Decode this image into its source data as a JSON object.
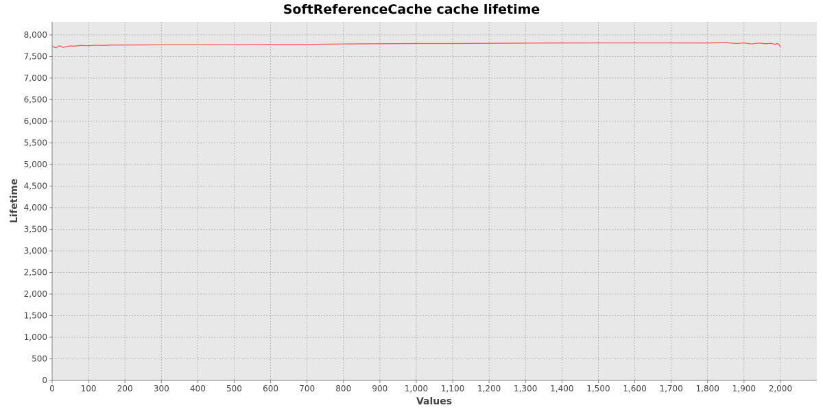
{
  "chart_data": {
    "type": "line",
    "title": "SoftReferenceCache cache lifetime",
    "xlabel": "Values",
    "ylabel": "Lifetime",
    "xlim": [
      0,
      2100
    ],
    "ylim": [
      0,
      8300
    ],
    "x_ticks": [
      0,
      100,
      200,
      300,
      400,
      500,
      600,
      700,
      800,
      900,
      1000,
      1100,
      1200,
      1300,
      1400,
      1500,
      1600,
      1700,
      1800,
      1900,
      2000
    ],
    "x_tick_labels": [
      "0",
      "100",
      "200",
      "300",
      "400",
      "500",
      "600",
      "700",
      "800",
      "900",
      "1,000",
      "1,100",
      "1,200",
      "1,300",
      "1,400",
      "1,500",
      "1,600",
      "1,700",
      "1,800",
      "1,900",
      "2,000"
    ],
    "y_ticks": [
      0,
      500,
      1000,
      1500,
      2000,
      2500,
      3000,
      3500,
      4000,
      4500,
      5000,
      5500,
      6000,
      6500,
      7000,
      7500,
      8000
    ],
    "y_tick_labels": [
      "0",
      "500",
      "1,000",
      "1,500",
      "2,000",
      "2,500",
      "3,000",
      "3,500",
      "4,000",
      "4,500",
      "5,000",
      "5,500",
      "6,000",
      "6,500",
      "7,000",
      "7,500",
      "8,000"
    ],
    "grid": true,
    "legend": "none",
    "colors": {
      "series": "#ff5555",
      "plot_background": "#e8e8e8",
      "grid": "#a8a8a8"
    },
    "series": [
      {
        "x": [
          0,
          10,
          20,
          30,
          40,
          50,
          60,
          80,
          100,
          120,
          140,
          160,
          200,
          300,
          400,
          500,
          600,
          700,
          800,
          900,
          1000,
          1100,
          1200,
          1300,
          1400,
          1500,
          1600,
          1700,
          1800,
          1850,
          1880,
          1900,
          1920,
          1940,
          1960,
          1975,
          1985,
          1990,
          1995,
          2000
        ],
        "y": [
          7740,
          7700,
          7750,
          7710,
          7730,
          7745,
          7740,
          7755,
          7750,
          7760,
          7755,
          7765,
          7765,
          7770,
          7770,
          7775,
          7780,
          7780,
          7790,
          7795,
          7800,
          7800,
          7805,
          7810,
          7812,
          7815,
          7815,
          7815,
          7812,
          7820,
          7800,
          7815,
          7790,
          7810,
          7795,
          7805,
          7780,
          7800,
          7790,
          7720
        ]
      }
    ]
  }
}
